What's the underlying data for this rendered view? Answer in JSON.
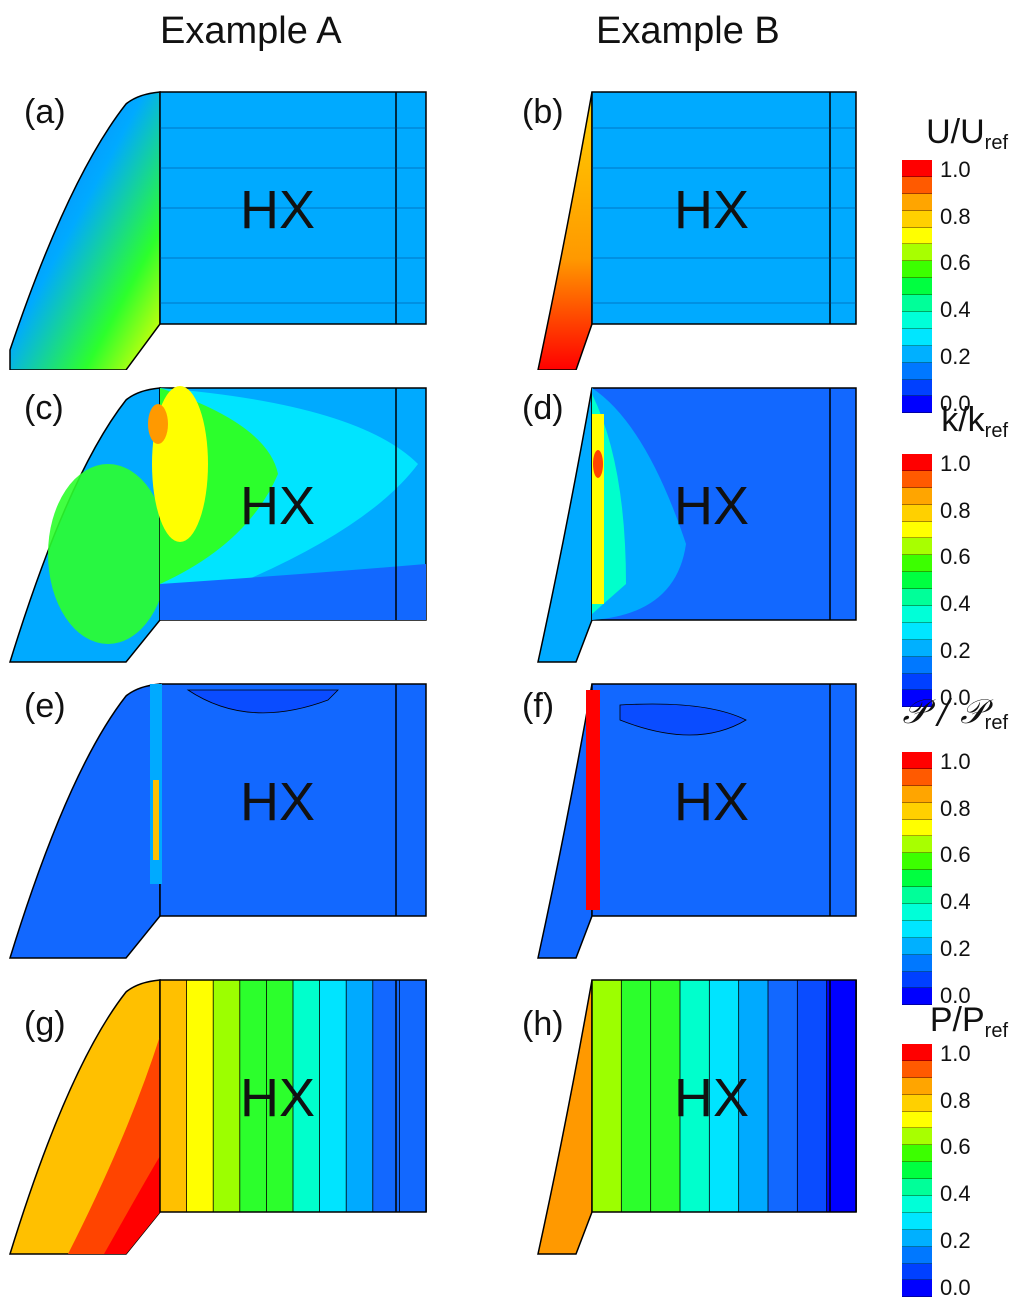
{
  "columns": {
    "a": "Example A",
    "b": "Example B"
  },
  "region_label": "HX",
  "panels": {
    "a": {
      "label": "(a)"
    },
    "b": {
      "label": "(b)"
    },
    "c": {
      "label": "(c)"
    },
    "d": {
      "label": "(d)"
    },
    "e": {
      "label": "(e)"
    },
    "f": {
      "label": "(f)"
    },
    "g": {
      "label": "(g)"
    },
    "h": {
      "label": "(h)"
    }
  },
  "colorbars": [
    {
      "base": "U/U",
      "sub": "ref"
    },
    {
      "base": "k/k",
      "sub": "ref"
    },
    {
      "base": "𝒫 / 𝒫",
      "sub": "ref"
    },
    {
      "base": "P/P",
      "sub": "ref"
    }
  ],
  "colorbar_ticks": [
    "1.0",
    "0.8",
    "0.6",
    "0.4",
    "0.2",
    "0.0"
  ],
  "colorbar_colors": [
    "#ff0000",
    "#ff5a00",
    "#ffa500",
    "#ffd000",
    "#ffff00",
    "#a8ff00",
    "#3cff00",
    "#00ff40",
    "#00ff99",
    "#00ffd8",
    "#00e6ff",
    "#00b0ff",
    "#0078ff",
    "#0040ff",
    "#0000ff"
  ],
  "field_colors": {
    "deep_blue": "#0a4cff",
    "blue": "#1268ff",
    "sky": "#00aaff",
    "cyan": "#00e4ff",
    "aqua": "#00ffcc",
    "green": "#2cff2c",
    "lime": "#9cff00",
    "yellow": "#ffff00",
    "gold": "#ffc000",
    "orange": "#ff9900",
    "red_orange": "#ff4400",
    "red": "#ff0000"
  }
}
